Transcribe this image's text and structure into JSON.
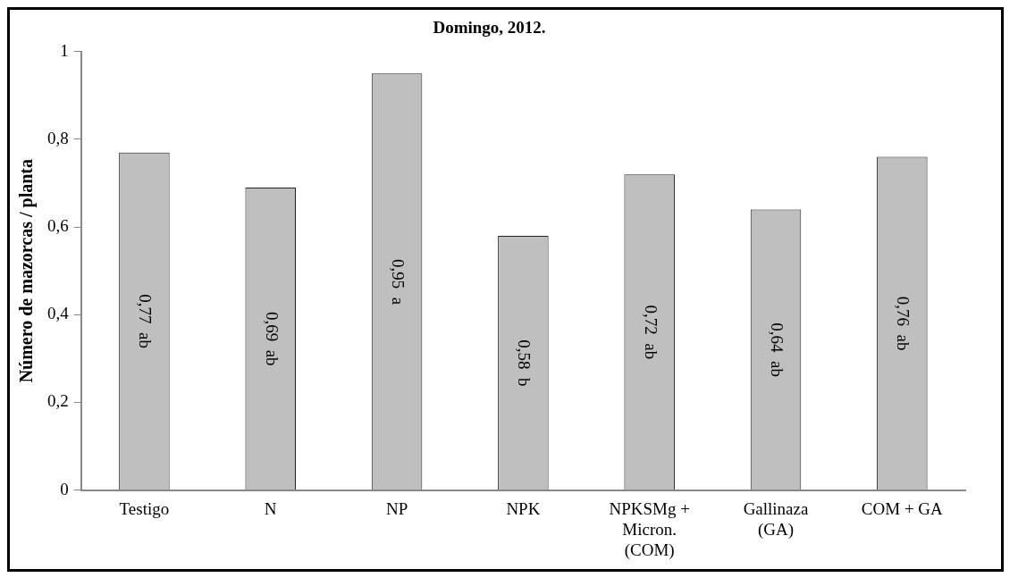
{
  "chart_data": {
    "type": "bar",
    "title": "Domingo, 2012.",
    "ylabel": "Número de mazorcas / planta",
    "categories": [
      "Testigo",
      "N",
      "NP",
      "NPK",
      "NPKSMg +\nMicron.\n(COM)",
      "Gallinaza\n(GA)",
      "COM + GA"
    ],
    "values": [
      0.77,
      0.69,
      0.95,
      0.58,
      0.72,
      0.64,
      0.76
    ],
    "value_labels": [
      "0,77  ab",
      "0,69  ab",
      "0,95  a",
      "0,58  b",
      "0,72  ab",
      "0,64  ab",
      "0,76  ab"
    ],
    "color": "#bfbfbf",
    "ylim": [
      0,
      1
    ],
    "yticks": [
      {
        "value": 0,
        "label": "0"
      },
      {
        "value": 0.2,
        "label": "0,2"
      },
      {
        "value": 0.4,
        "label": "0,4"
      },
      {
        "value": 0.6,
        "label": "0,6"
      },
      {
        "value": 0.8,
        "label": "0,8"
      },
      {
        "value": 1,
        "label": "1"
      }
    ],
    "grid": false,
    "legend": false
  }
}
